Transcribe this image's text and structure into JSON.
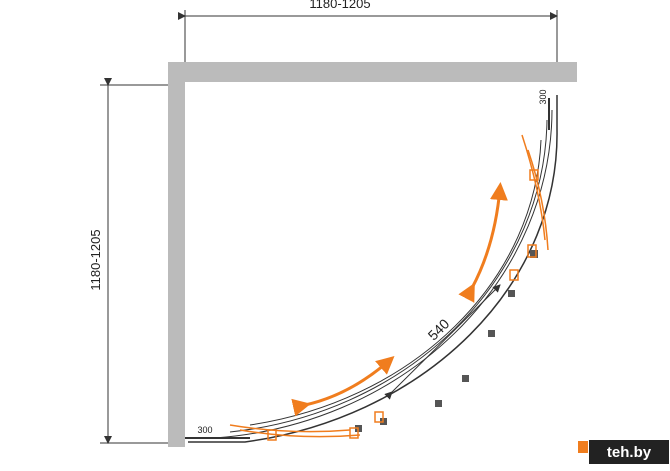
{
  "dimensions": {
    "width": "1180-1205",
    "depth": "1180-1205",
    "door_opening": "540",
    "door_offset_top": "300",
    "door_offset_bottom": "300"
  },
  "watermark": "teh.by"
}
